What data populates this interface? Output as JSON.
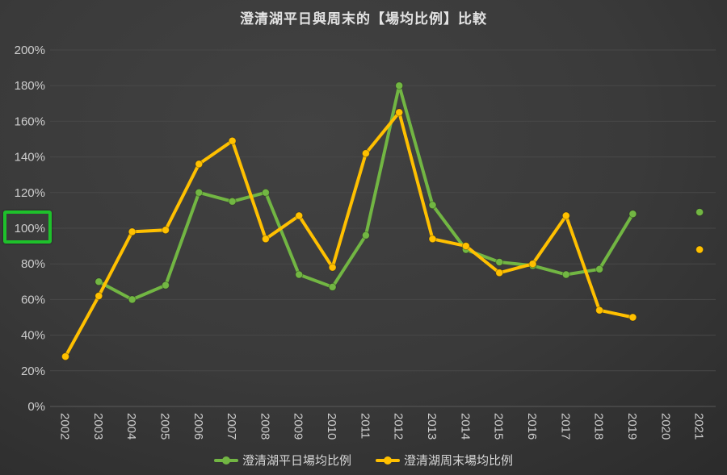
{
  "title": "澄清湖平日與周末的【場均比例】比較",
  "chart_data": {
    "type": "line",
    "categories": [
      "2002",
      "2003",
      "2004",
      "2005",
      "2006",
      "2007",
      "2008",
      "2009",
      "2010",
      "2011",
      "2012",
      "2013",
      "2014",
      "2015",
      "2016",
      "2017",
      "2018",
      "2019",
      "2020",
      "2021"
    ],
    "series": [
      {
        "name": "澄清湖平日場均比例",
        "color": "#72B643",
        "values": [
          null,
          70,
          60,
          68,
          120,
          115,
          120,
          74,
          67,
          96,
          180,
          113,
          88,
          81,
          79,
          74,
          77,
          108,
          null,
          109
        ]
      },
      {
        "name": "澄清湖周末場均比例",
        "color": "#FFC000",
        "values": [
          28,
          62,
          98,
          99,
          136,
          149,
          94,
          107,
          78,
          142,
          165,
          94,
          90,
          75,
          80,
          107,
          54,
          50,
          null,
          88
        ]
      }
    ],
    "ylim": [
      0,
      200
    ],
    "y_ticks": [
      "0%",
      "20%",
      "40%",
      "60%",
      "80%",
      "100%",
      "120%",
      "140%",
      "160%",
      "180%",
      "200%"
    ],
    "x_label_rotation_deg": 90,
    "grid": true,
    "legend_position": "bottom",
    "highlight": {
      "y_tick": "100%",
      "color": "#1EC12B"
    },
    "colors": {
      "background_center": "#424242",
      "background_edge": "#212121",
      "gridline": "#484848",
      "axis_line": "#5a5a5a",
      "tick_label": "#cdcdcd",
      "title_text": "#e2e2e2"
    }
  }
}
